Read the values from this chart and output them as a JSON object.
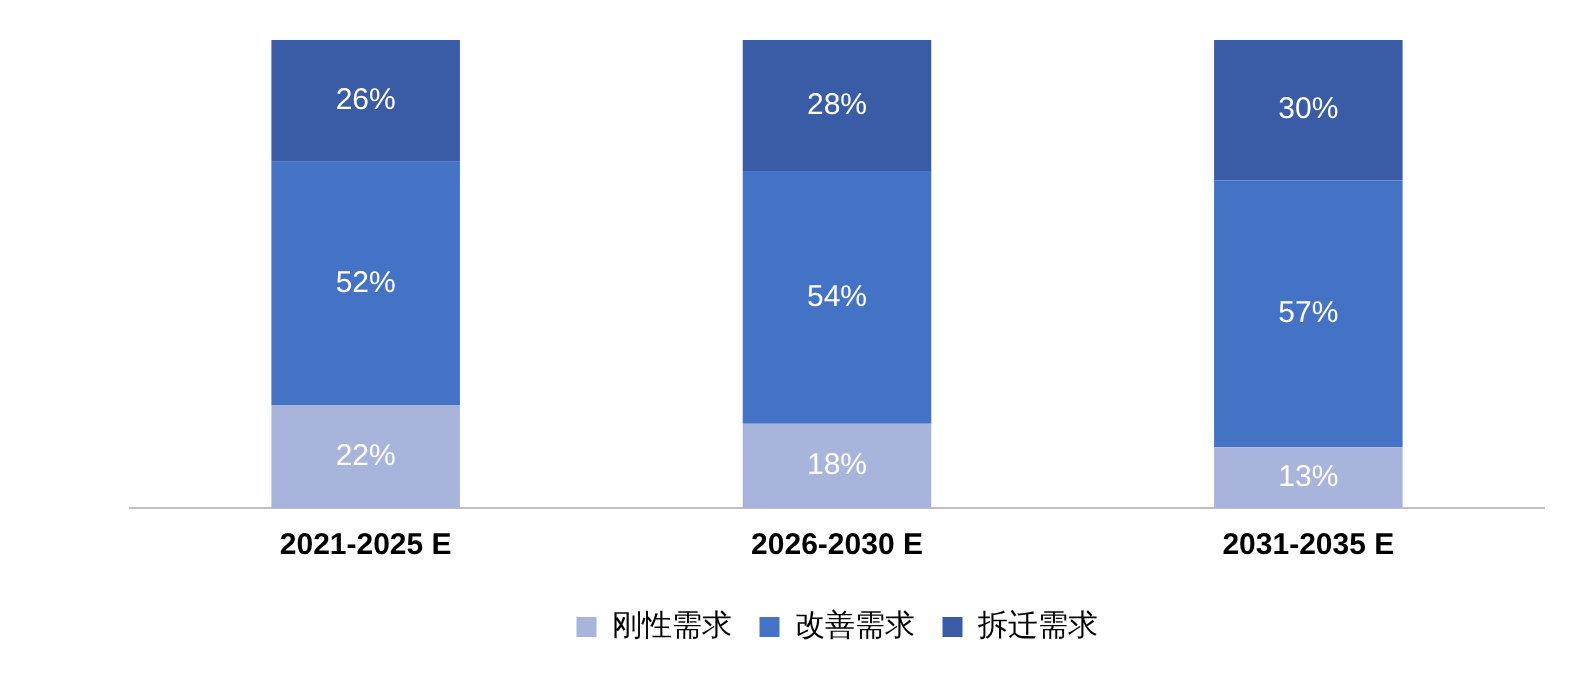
{
  "chart_data": {
    "type": "bar",
    "stacked": true,
    "categories": [
      "2021-2025 E",
      "2026-2030 E",
      "2031-2035 E"
    ],
    "series": [
      {
        "name": "刚性需求",
        "color": "#a9b4dc",
        "values": [
          22,
          18,
          13
        ],
        "value_labels": [
          "22%",
          "18%",
          "13%"
        ]
      },
      {
        "name": "改善需求",
        "color": "#4472c4",
        "values": [
          52,
          54,
          57
        ],
        "value_labels": [
          "52%",
          "54%",
          "57%"
        ]
      },
      {
        "name": "拆迁需求",
        "color": "#3a5ca6",
        "values": [
          26,
          28,
          30
        ],
        "value_labels": [
          "26%",
          "28%",
          "30%"
        ]
      }
    ],
    "ylim": [
      0,
      100
    ],
    "tick_labels": "x",
    "legend": "bottom",
    "grid": false
  }
}
